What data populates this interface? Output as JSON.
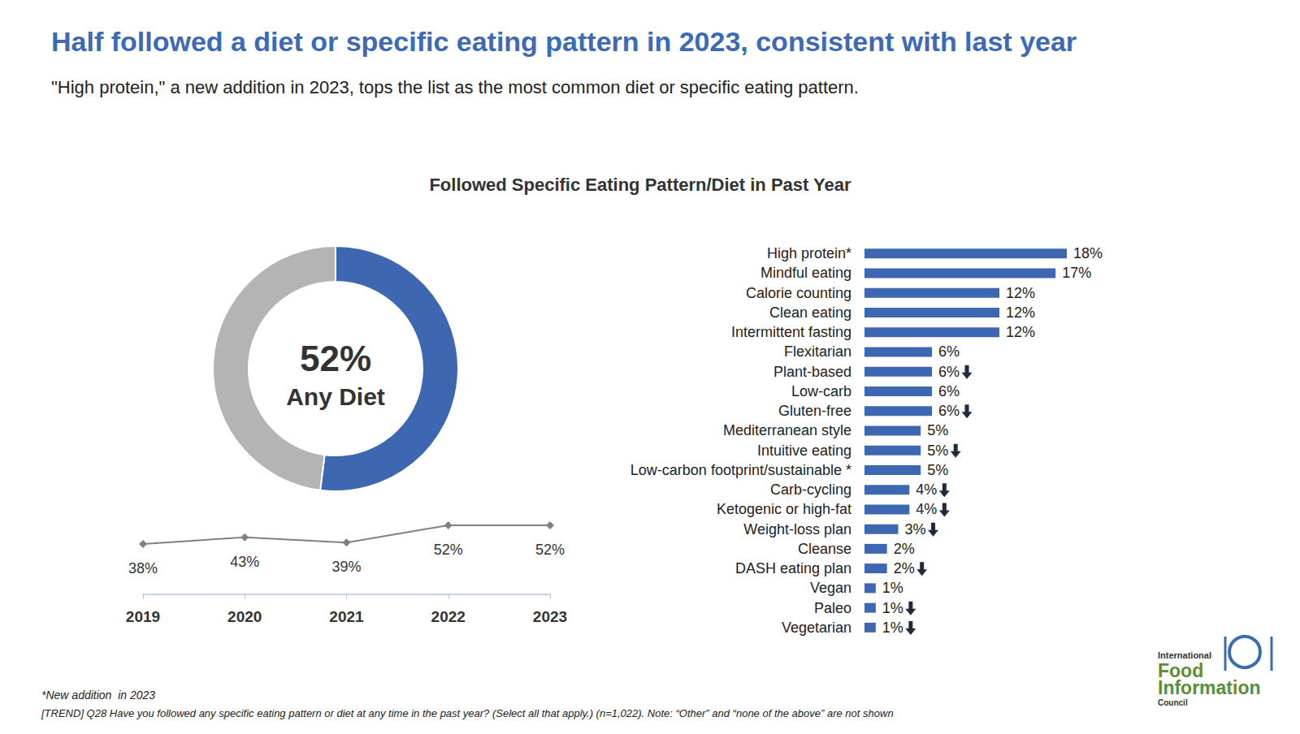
{
  "header": {
    "title": "Half followed a diet or specific eating pattern in 2023, consistent with last year",
    "subtitle": "\"High protein,\" a new addition in 2023, tops the list as the most common diet or specific eating pattern."
  },
  "chart_data": [
    {
      "type": "pie",
      "categories": [
        "Any Diet",
        null
      ],
      "values": [
        52,
        48
      ],
      "value_labels": [
        "52%",
        null
      ],
      "colors": [
        "#3d67b1",
        "#b3b4b3"
      ]
    },
    {
      "type": "line",
      "categories": [
        "2019",
        "2020",
        "2021",
        "2022",
        "2023"
      ],
      "values": [
        38,
        43,
        39,
        52,
        52
      ],
      "value_labels": [
        "38%",
        "43%",
        "39%",
        "52%",
        "52%"
      ],
      "color": "#808080",
      "marker": "diamond",
      "data_labels": true,
      "tick_labels": "x"
    },
    {
      "type": "bar",
      "title": "Followed Specific Eating Pattern/Diet in Past Year",
      "orientation": "horizontal",
      "categories": [
        "High protein*",
        "Mindful eating",
        "Calorie counting",
        "Clean eating",
        "Intermittent fasting",
        "Flexitarian",
        "Plant-based",
        "Low-carb",
        "Gluten-free",
        "Mediterranean style",
        "Intuitive eating",
        "Low-carbon footprint/sustainable *",
        "Carb-cycling",
        "Ketogenic or high-fat",
        "Weight-loss plan",
        "Cleanse",
        "DASH eating plan",
        "Vegan",
        "Paleo",
        "Vegetarian"
      ],
      "values": [
        18,
        17,
        12,
        12,
        12,
        6,
        6,
        6,
        6,
        5,
        5,
        5,
        4,
        4,
        3,
        2,
        2,
        1,
        1,
        1
      ],
      "value_labels": [
        "18%",
        "17%",
        "12%",
        "12%",
        "12%",
        "6%",
        "6%",
        "6%",
        "6%",
        "5%",
        "5%",
        "5%",
        "4%",
        "4%",
        "3%",
        "2%",
        "2%",
        "1%",
        "1%",
        "1%"
      ],
      "significant_decrease": [
        false,
        false,
        false,
        false,
        false,
        false,
        true,
        false,
        true,
        false,
        true,
        false,
        true,
        true,
        true,
        false,
        true,
        false,
        true,
        true
      ],
      "color": "#3d67b1",
      "data_labels": true,
      "tick_labels": "y"
    }
  ],
  "footnotes": [
    "*New addition  in 2023",
    "[TREND] Q28 Have you followed any specific eating pattern or diet at any time in the past year? (Select all that apply.) (n=1,022). Note: “Other” and “none of the above” are not shown"
  ],
  "logo": [
    "International",
    "Food",
    "Information",
    "Council"
  ]
}
